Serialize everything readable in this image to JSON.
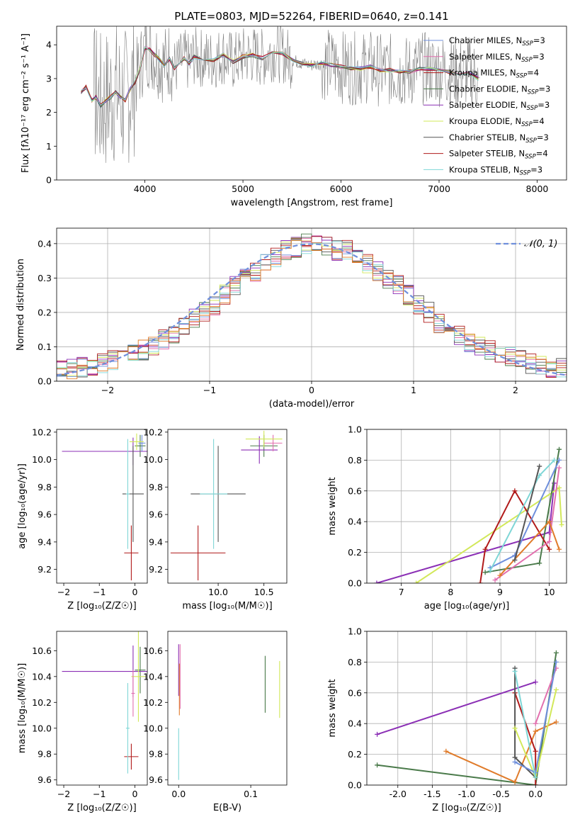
{
  "title": "PLATE=0803, MJD=52264, FIBERID=0640, z=0.141",
  "colors": {
    "chabrier_miles": "#6f8fdc",
    "salpeter_miles": "#e26fae",
    "kroupa_miles": "#b11a1a",
    "chabrier_elodie": "#4a7a4a",
    "salpeter_elodie": "#8b2fb5",
    "kroupa_elodie": "#d2e85a",
    "chabrier_stelib": "#555555",
    "salpeter_stelib": "#b11a1a",
    "kroupa_stelib": "#7ed6d6",
    "data": "#808080",
    "normal": "#6f8fdc",
    "grid": "#b0b0b0",
    "orange": "#e07b2a"
  },
  "chart_data": [
    {
      "type": "line",
      "xlabel": "wavelength [Angstrom, rest frame]",
      "ylabel": "Flux [fλ10⁻¹⁷ erg cm⁻² s⁻¹ A⁻¹]",
      "xlim": [
        3100,
        8300
      ],
      "ylim": [
        0,
        4.55
      ],
      "xticks": [
        4000,
        5000,
        6000,
        7000,
        8000
      ],
      "yticks": [
        0,
        1,
        2,
        3,
        4
      ],
      "legend": "upper-right",
      "legend_entries": [
        {
          "pre": "Chabrier MILES, N",
          "post": "=3",
          "color": "chabrier_miles"
        },
        {
          "pre": "Salpeter MILES, N",
          "post": "=3",
          "color": "salpeter_miles"
        },
        {
          "pre": "Kroupa MILES, N",
          "post": "=4",
          "color": "kroupa_miles"
        },
        {
          "pre": "Chabrier ELODIE, N",
          "post": "=3",
          "color": "chabrier_elodie"
        },
        {
          "pre": "Salpeter ELODIE, N",
          "post": "=3",
          "color": "salpeter_elodie"
        },
        {
          "pre": "Kroupa ELODIE, N",
          "post": "=4",
          "color": "kroupa_elodie"
        },
        {
          "pre": "Chabrier STELIB, N",
          "post": "=3",
          "color": "chabrier_stelib"
        },
        {
          "pre": "Salpeter STELIB, N",
          "post": "=4",
          "color": "salpeter_stelib"
        },
        {
          "pre": "Kroupa STELIB, N",
          "post": "=3",
          "color": "kroupa_stelib"
        }
      ],
      "legend_sub": "SSP",
      "model": {
        "x": [
          3350,
          3400,
          3430,
          3460,
          3500,
          3550,
          3600,
          3650,
          3700,
          3750,
          3800,
          3850,
          3900,
          3950,
          4000,
          4050,
          4100,
          4150,
          4200,
          4250,
          4300,
          4350,
          4400,
          4450,
          4500,
          4600,
          4700,
          4800,
          4900,
          5000,
          5100,
          5200,
          5300,
          5400,
          5500,
          5600,
          5700,
          5800,
          5900,
          6000,
          6100,
          6200,
          6300,
          6400,
          6500,
          6600,
          6700,
          6800,
          6900,
          7000,
          7100,
          7200,
          7300,
          7400
        ],
        "y": [
          2.6,
          2.75,
          2.55,
          2.35,
          2.45,
          2.2,
          2.35,
          2.45,
          2.6,
          2.45,
          2.35,
          2.7,
          2.9,
          3.3,
          3.9,
          3.85,
          3.7,
          3.55,
          3.4,
          3.6,
          3.3,
          3.45,
          3.6,
          3.45,
          3.65,
          3.6,
          3.55,
          3.7,
          3.5,
          3.65,
          3.7,
          3.6,
          3.8,
          3.75,
          3.55,
          3.45,
          3.4,
          3.45,
          3.4,
          3.35,
          3.3,
          3.3,
          3.35,
          3.25,
          3.25,
          3.2,
          3.2,
          3.3,
          3.3,
          3.25,
          3.2,
          3.15,
          3.2,
          3.0
        ]
      }
    },
    {
      "type": "bar",
      "xlabel": "(data-model)/error",
      "ylabel": "Normed distribution",
      "xlim": [
        -2.5,
        2.5
      ],
      "ylim": [
        0,
        0.445
      ],
      "xticks": [
        -2,
        -1,
        0,
        1,
        2
      ],
      "yticks": [
        0.0,
        0.1,
        0.2,
        0.3,
        0.4
      ],
      "grid": true,
      "legend": "upper-right",
      "legend_label": "𝒩(0, 1)",
      "bin_width": 0.1,
      "histogram_envelope": [
        0.03,
        0.035,
        0.04,
        0.045,
        0.05,
        0.06,
        0.07,
        0.08,
        0.09,
        0.1,
        0.12,
        0.14,
        0.16,
        0.18,
        0.2,
        0.22,
        0.25,
        0.28,
        0.3,
        0.32,
        0.35,
        0.36,
        0.38,
        0.39,
        0.4,
        0.4,
        0.39,
        0.38,
        0.38,
        0.36,
        0.34,
        0.32,
        0.3,
        0.28,
        0.25,
        0.22,
        0.2,
        0.17,
        0.15,
        0.13,
        0.11,
        0.1,
        0.09,
        0.08,
        0.07,
        0.06,
        0.05,
        0.045,
        0.04,
        0.04
      ]
    },
    {
      "type": "scatter",
      "xlabel": "Z [log₁₀(Z/Z☉)]",
      "ylabel": "age  [log₁₀(age/yr)]",
      "xlim": [
        -2.2,
        0.35
      ],
      "ylim": [
        9.1,
        10.22
      ],
      "xticks": [
        -2,
        -1,
        0
      ],
      "yticks": [
        9.2,
        9.4,
        9.6,
        9.8,
        10.0,
        10.2
      ],
      "points": [
        {
          "x": 0.15,
          "y": 10.1,
          "xerr": 0.15,
          "yerr": 0.08,
          "color": "chabrier_elodie"
        },
        {
          "x": -0.05,
          "y": 10.06,
          "xerr": 2.0,
          "yerr": 0.1,
          "color": "salpeter_elodie"
        },
        {
          "x": -0.1,
          "y": 9.32,
          "xerr": 0.2,
          "yerr": 0.2,
          "color": "kroupa_miles"
        },
        {
          "x": -0.05,
          "y": 9.75,
          "xerr": 0.3,
          "yerr": 0.35,
          "color": "chabrier_stelib"
        },
        {
          "x": 0.2,
          "y": 10.12,
          "xerr": 0.1,
          "yerr": 0.06,
          "color": "chabrier_miles"
        },
        {
          "x": 0.05,
          "y": 10.13,
          "xerr": 0.2,
          "yerr": 0.06,
          "color": "kroupa_elodie"
        },
        {
          "x": -0.2,
          "y": 9.75,
          "xerr": 0.05,
          "yerr": 0.4,
          "color": "kroupa_stelib"
        }
      ]
    },
    {
      "type": "scatter",
      "xlabel": "mass [log₁₀(M/M☉)]",
      "ylabel": "",
      "xlim": [
        9.45,
        10.75
      ],
      "ylim": [
        9.1,
        10.22
      ],
      "xticks": [
        10.0,
        10.5
      ],
      "yticks": [
        9.2,
        9.4,
        9.6,
        9.8,
        10.0,
        10.2
      ],
      "points": [
        {
          "x": 10.5,
          "y": 10.1,
          "xerr": 0.15,
          "yerr": 0.08,
          "color": "chabrier_elodie"
        },
        {
          "x": 10.45,
          "y": 10.07,
          "xerr": 0.2,
          "yerr": 0.1,
          "color": "salpeter_elodie"
        },
        {
          "x": 9.78,
          "y": 9.32,
          "xerr": 0.3,
          "yerr": 0.2,
          "color": "kroupa_miles"
        },
        {
          "x": 10.0,
          "y": 9.75,
          "xerr": 0.3,
          "yerr": 0.35,
          "color": "chabrier_stelib"
        },
        {
          "x": 10.6,
          "y": 10.12,
          "xerr": 0.1,
          "yerr": 0.06,
          "color": "salpeter_miles"
        },
        {
          "x": 10.5,
          "y": 10.15,
          "xerr": 0.2,
          "yerr": 0.06,
          "color": "kroupa_elodie"
        },
        {
          "x": 9.95,
          "y": 9.75,
          "xerr": 0.15,
          "yerr": 0.4,
          "color": "kroupa_stelib"
        }
      ]
    },
    {
      "type": "line",
      "xlabel": "age  [log₁₀(age/yr)]",
      "ylabel": "mass weight",
      "xlim": [
        6.3,
        10.35
      ],
      "ylim": [
        0,
        1.0
      ],
      "xticks": [
        7,
        8,
        9,
        10
      ],
      "yticks": [
        0.0,
        0.2,
        0.4,
        0.6,
        0.8,
        1.0
      ],
      "grid": true,
      "series": [
        {
          "color": "salpeter_elodie",
          "points": [
            [
              6.5,
              0.0
            ],
            [
              10.0,
              0.33
            ],
            [
              10.1,
              0.65
            ]
          ]
        },
        {
          "color": "kroupa_elodie",
          "points": [
            [
              7.3,
              0.0
            ],
            [
              10.2,
              0.62
            ],
            [
              10.25,
              0.38
            ]
          ]
        },
        {
          "color": "chabrier_elodie",
          "points": [
            [
              8.7,
              0.07
            ],
            [
              9.8,
              0.13
            ],
            [
              10.2,
              0.87
            ]
          ]
        },
        {
          "color": "kroupa_miles",
          "points": [
            [
              8.6,
              0.0
            ],
            [
              8.7,
              0.22
            ],
            [
              9.3,
              0.6
            ],
            [
              10.0,
              0.22
            ]
          ]
        },
        {
          "color": "chabrier_miles",
          "points": [
            [
              8.8,
              0.1
            ],
            [
              9.3,
              0.18
            ],
            [
              10.2,
              0.8
            ]
          ]
        },
        {
          "color": "salpeter_miles",
          "points": [
            [
              8.9,
              0.02
            ],
            [
              10.0,
              0.27
            ],
            [
              10.2,
              0.75
            ]
          ]
        },
        {
          "color": "orange",
          "points": [
            [
              9.0,
              0.05
            ],
            [
              10.0,
              0.4
            ],
            [
              10.2,
              0.22
            ]
          ]
        },
        {
          "color": "kroupa_stelib",
          "points": [
            [
              8.8,
              0.08
            ],
            [
              9.8,
              0.7
            ],
            [
              10.1,
              0.8
            ]
          ]
        },
        {
          "color": "chabrier_stelib",
          "points": [
            [
              9.3,
              0.15
            ],
            [
              9.8,
              0.76
            ]
          ]
        }
      ]
    },
    {
      "type": "scatter",
      "xlabel": "Z [log₁₀(Z/Z☉)]",
      "ylabel": "mass [log₁₀(M/M☉)]",
      "xlim": [
        -2.2,
        0.35
      ],
      "ylim": [
        9.56,
        10.75
      ],
      "xticks": [
        -2,
        -1,
        0
      ],
      "yticks": [
        9.6,
        9.8,
        10.0,
        10.2,
        10.4,
        10.6
      ],
      "points": [
        {
          "x": 0.15,
          "y": 10.45,
          "xerr": 0.15,
          "yerr": 0.18,
          "color": "chabrier_elodie"
        },
        {
          "x": -0.05,
          "y": 10.44,
          "xerr": 2.0,
          "yerr": 0.2,
          "color": "salpeter_elodie"
        },
        {
          "x": -0.1,
          "y": 9.78,
          "xerr": 0.2,
          "yerr": 0.1,
          "color": "kroupa_miles"
        },
        {
          "x": -0.2,
          "y": 10.0,
          "xerr": 0.05,
          "yerr": 0.35,
          "color": "kroupa_stelib"
        },
        {
          "x": 0.1,
          "y": 10.4,
          "xerr": 0.2,
          "yerr": 0.35,
          "color": "kroupa_elodie"
        },
        {
          "x": -0.05,
          "y": 10.27,
          "xerr": 0.05,
          "yerr": 0.18,
          "color": "salpeter_miles"
        }
      ]
    },
    {
      "type": "scatter",
      "xlabel": "E(B-V)",
      "ylabel": "",
      "xlim": [
        -0.015,
        0.15
      ],
      "ylim": [
        9.56,
        10.75
      ],
      "xticks": [
        0.0,
        0.1
      ],
      "yticks": [
        9.6,
        9.8,
        10.0,
        10.2,
        10.4,
        10.6
      ],
      "points": [
        {
          "x": 0.0,
          "y": 10.45,
          "yerr": 0.2,
          "color": "salpeter_elodie"
        },
        {
          "x": 0.002,
          "y": 10.4,
          "yerr": 0.25,
          "color": "salpeter_miles"
        },
        {
          "x": 0.001,
          "y": 10.3,
          "yerr": 0.2,
          "color": "orange"
        },
        {
          "x": 0.0,
          "y": 9.8,
          "yerr": 0.2,
          "color": "kroupa_stelib"
        },
        {
          "x": 0.12,
          "y": 10.34,
          "yerr": 0.22,
          "color": "chabrier_elodie"
        },
        {
          "x": 0.14,
          "y": 10.3,
          "yerr": 0.22,
          "color": "kroupa_elodie"
        }
      ]
    },
    {
      "type": "line",
      "xlabel": "Z [log₁₀(Z/Z☉)]",
      "ylabel": "mass weight",
      "xlim": [
        -2.45,
        0.45
      ],
      "ylim": [
        0,
        1.0
      ],
      "xticks": [
        -2.0,
        -1.5,
        -1.0,
        -0.5,
        0.0
      ],
      "yticks": [
        0.0,
        0.2,
        0.4,
        0.6,
        0.8,
        1.0
      ],
      "grid": true,
      "series": [
        {
          "color": "salpeter_elodie",
          "points": [
            [
              -2.3,
              0.33
            ],
            [
              0.0,
              0.67
            ]
          ]
        },
        {
          "color": "chabrier_elodie",
          "points": [
            [
              -2.3,
              0.13
            ],
            [
              0.0,
              0.0
            ],
            [
              0.3,
              0.86
            ]
          ]
        },
        {
          "color": "orange",
          "points": [
            [
              -1.3,
              0.22
            ],
            [
              -0.3,
              0.02
            ],
            [
              0.0,
              0.35
            ],
            [
              0.3,
              0.41
            ]
          ]
        },
        {
          "color": "kroupa_miles",
          "points": [
            [
              -0.3,
              0.6
            ],
            [
              0.0,
              0.22
            ],
            [
              0.0,
              0.0
            ]
          ]
        },
        {
          "color": "chabrier_stelib",
          "points": [
            [
              -0.3,
              0.76
            ],
            [
              -0.3,
              0.18
            ],
            [
              0.0,
              0.05
            ]
          ]
        },
        {
          "color": "kroupa_elodie",
          "points": [
            [
              -0.3,
              0.37
            ],
            [
              0.0,
              0.05
            ],
            [
              0.3,
              0.62
            ]
          ]
        },
        {
          "color": "salpeter_miles",
          "points": [
            [
              0.0,
              0.4
            ],
            [
              0.3,
              0.76
            ]
          ]
        },
        {
          "color": "chabrier_miles",
          "points": [
            [
              -0.3,
              0.15
            ],
            [
              0.0,
              0.08
            ],
            [
              0.3,
              0.8
            ]
          ]
        },
        {
          "color": "kroupa_stelib",
          "points": [
            [
              -0.3,
              0.74
            ],
            [
              0.0,
              0.05
            ]
          ]
        }
      ]
    }
  ]
}
